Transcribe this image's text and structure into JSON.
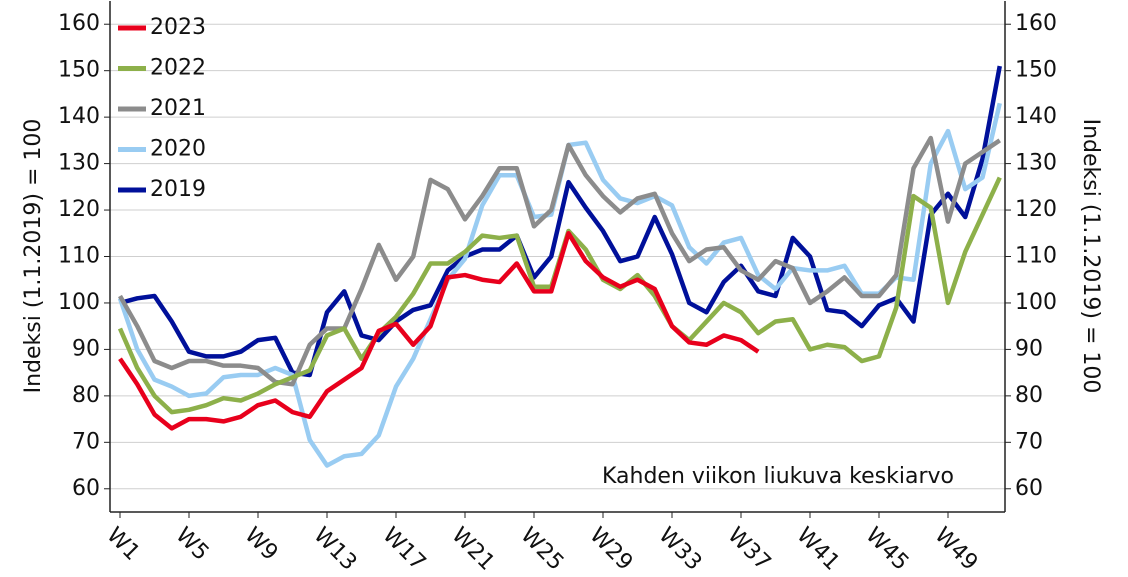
{
  "chart_data": {
    "type": "line",
    "categories": [
      "W1",
      null,
      null,
      null,
      "W5",
      null,
      null,
      null,
      "W9",
      null,
      null,
      null,
      "W13",
      null,
      null,
      null,
      "W17",
      null,
      null,
      null,
      "W21",
      null,
      null,
      null,
      "W25",
      null,
      null,
      null,
      "W29",
      null,
      null,
      null,
      "W33",
      null,
      null,
      null,
      "W37",
      null,
      null,
      null,
      "W41",
      null,
      null,
      null,
      "W45",
      null,
      null,
      null,
      "W49",
      null,
      null,
      null
    ],
    "series": [
      {
        "name": "2023",
        "color": "#e8001c",
        "values": [
          88,
          82.5,
          76,
          73,
          75,
          75,
          74.5,
          75.5,
          78,
          79,
          76.5,
          75.5,
          81,
          83.5,
          86,
          94,
          95.5,
          91,
          95,
          105.5,
          106,
          105,
          104.5,
          108.5,
          102.5,
          102.5,
          115,
          109,
          105.5,
          103.5,
          105,
          103,
          95,
          91.5,
          91,
          93,
          92,
          89.5,
          null,
          null,
          null,
          null,
          null,
          null,
          null,
          null,
          null,
          null,
          null,
          null,
          null,
          null
        ]
      },
      {
        "name": "2022",
        "color": "#8db04a",
        "values": [
          94.5,
          86,
          80,
          76.5,
          77,
          78,
          79.5,
          79,
          80.5,
          82.5,
          84,
          85.5,
          93,
          94.5,
          88,
          93.5,
          97,
          102,
          108.5,
          108.5,
          111,
          114.5,
          114,
          114.5,
          103.5,
          103.5,
          115.5,
          111.5,
          105,
          103,
          106,
          101.5,
          95,
          92,
          96,
          100,
          98,
          93.5,
          96,
          96.5,
          90,
          91,
          90.5,
          87.5,
          88.5,
          99,
          123,
          120.5,
          100,
          111,
          119,
          127
        ]
      },
      {
        "name": "2021",
        "color": "#8c8c8c",
        "values": [
          101.5,
          95,
          87.5,
          86,
          87.5,
          87.5,
          86.5,
          86.5,
          86,
          83,
          82.5,
          91,
          94.5,
          94.5,
          103,
          112.5,
          105,
          110,
          126.5,
          124.5,
          118,
          123,
          129,
          129,
          116.5,
          120,
          134,
          127.5,
          123,
          119.5,
          122.5,
          123.5,
          115,
          109,
          111.5,
          112,
          107,
          105,
          109,
          107.5,
          100,
          102.5,
          105.5,
          101.5,
          101.5,
          106,
          129,
          135.5,
          117.5,
          130,
          132.5,
          135
        ]
      },
      {
        "name": "2020",
        "color": "#99ccf2",
        "values": [
          101,
          90,
          83.5,
          82,
          80,
          80.5,
          84,
          84.5,
          84.5,
          86,
          84.5,
          70.5,
          65,
          67,
          67.5,
          71.5,
          82,
          88,
          96.5,
          105,
          109.5,
          121,
          127.5,
          127.5,
          118.5,
          119,
          134,
          134.5,
          126.5,
          122.5,
          121.5,
          123,
          121,
          112,
          108.5,
          113,
          114,
          106,
          103,
          107.5,
          107,
          107,
          108,
          102,
          102,
          105.5,
          105,
          130,
          137,
          124.5,
          127,
          143
        ]
      },
      {
        "name": "2019",
        "color": "#00109a",
        "values": [
          100,
          101,
          101.5,
          96,
          89.5,
          88.5,
          88.5,
          89.5,
          92,
          92.5,
          85,
          84.5,
          98,
          102.5,
          93,
          92,
          96,
          98.5,
          99.5,
          107,
          110,
          111.5,
          111.5,
          114.5,
          105.5,
          110,
          126,
          120.5,
          115.5,
          109,
          110,
          118.5,
          110.5,
          100,
          98,
          104.5,
          108,
          102.5,
          101.5,
          114,
          110,
          98.5,
          98,
          95,
          99.5,
          101,
          96,
          119,
          123.5,
          118.5,
          131,
          151
        ]
      }
    ],
    "ylim": [
      55,
      165
    ],
    "yticks": [
      60,
      70,
      80,
      90,
      100,
      110,
      120,
      130,
      140,
      150,
      160
    ],
    "y2lim": [
      55,
      165
    ],
    "y2ticks": [
      60,
      70,
      80,
      90,
      100,
      110,
      120,
      130,
      140,
      150,
      160
    ],
    "ylabel": "Indeksi (1.1.2019) = 100",
    "y2label": "Indeksi (1.1.2019) = 100",
    "annotation": "Kahden viikon liukuva keskiarvo",
    "grid": true,
    "legend": "upper left"
  }
}
